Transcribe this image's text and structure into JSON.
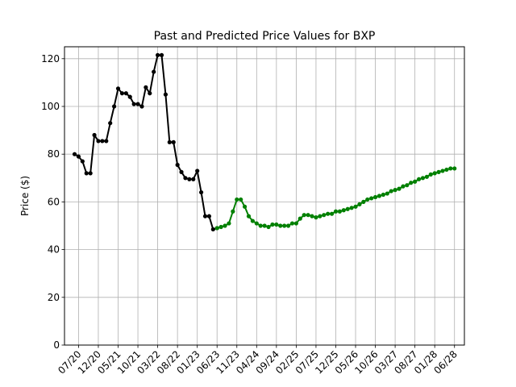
{
  "chart_data": {
    "type": "line",
    "title": "Past and Predicted Price Values for BXP",
    "xlabel": "",
    "ylabel": "Price ($)",
    "ylim": [
      0,
      125
    ],
    "yticks": [
      0,
      20,
      40,
      60,
      80,
      100,
      120
    ],
    "xticks": [
      "07/20",
      "12/20",
      "05/21",
      "10/21",
      "03/22",
      "08/22",
      "01/23",
      "06/23",
      "11/23",
      "04/24",
      "09/24",
      "02/25",
      "07/25",
      "12/25",
      "05/26",
      "10/26",
      "03/27",
      "08/27",
      "01/28",
      "06/28"
    ],
    "grid": true,
    "series": [
      {
        "color": "#000000",
        "x": [
          "2020-06",
          "2020-07",
          "2020-08",
          "2020-09",
          "2020-10",
          "2020-11",
          "2020-12",
          "2021-01",
          "2021-02",
          "2021-03",
          "2021-04",
          "2021-05",
          "2021-06",
          "2021-07",
          "2021-08",
          "2021-09",
          "2021-10",
          "2021-11",
          "2021-12",
          "2022-01",
          "2022-02",
          "2022-03",
          "2022-04",
          "2022-05",
          "2022-06",
          "2022-07",
          "2022-08",
          "2022-09",
          "2022-10",
          "2022-11",
          "2022-12",
          "2023-01",
          "2023-02",
          "2023-03",
          "2023-04",
          "2023-05",
          "2023-06"
        ],
        "y": [
          80,
          79,
          77,
          72,
          72,
          88,
          85.5,
          85.5,
          85.5,
          93,
          100,
          107.5,
          105.5,
          105.5,
          104,
          101,
          101,
          100,
          108,
          105.5,
          114.5,
          121.5,
          121.5,
          105,
          85,
          85,
          75.5,
          72.5,
          70,
          69.5,
          69.5,
          73,
          64,
          54,
          54,
          48.5,
          49
        ]
      },
      {
        "color": "#008000",
        "x": [
          "2023-06",
          "2023-07",
          "2023-08",
          "2023-09",
          "2023-10",
          "2023-11",
          "2023-12",
          "2024-01",
          "2024-02",
          "2024-03",
          "2024-04",
          "2024-05",
          "2024-06",
          "2024-07",
          "2024-08",
          "2024-09",
          "2024-10",
          "2024-11",
          "2024-12",
          "2025-01",
          "2025-02",
          "2025-03",
          "2025-04",
          "2025-05",
          "2025-06",
          "2025-07",
          "2025-08",
          "2025-09",
          "2025-10",
          "2025-11",
          "2025-12",
          "2026-01",
          "2026-02",
          "2026-03",
          "2026-04",
          "2026-05",
          "2026-06",
          "2026-07",
          "2026-08",
          "2026-09",
          "2026-10",
          "2026-11",
          "2026-12",
          "2027-01",
          "2027-02",
          "2027-03",
          "2027-04",
          "2027-05",
          "2027-06",
          "2027-07",
          "2027-08",
          "2027-09",
          "2027-10",
          "2027-11",
          "2027-12",
          "2028-01",
          "2028-02",
          "2028-03",
          "2028-04",
          "2028-05",
          "2028-06"
        ],
        "y": [
          49,
          49.5,
          50,
          51,
          56,
          61,
          61,
          58,
          54,
          52,
          51,
          50,
          50,
          49.5,
          50.5,
          50.5,
          50,
          50,
          50,
          51,
          51,
          53,
          54.5,
          54.5,
          54,
          53.5,
          54,
          54.5,
          55,
          55,
          56,
          56,
          56.5,
          57,
          57.5,
          58,
          59,
          60,
          61,
          61.5,
          62,
          62.5,
          63,
          63.5,
          64.5,
          65,
          65.5,
          66.5,
          67,
          68,
          68.5,
          69.5,
          70,
          70.5,
          71.5,
          72,
          72.5,
          73,
          73.5,
          74,
          74
        ]
      }
    ]
  }
}
